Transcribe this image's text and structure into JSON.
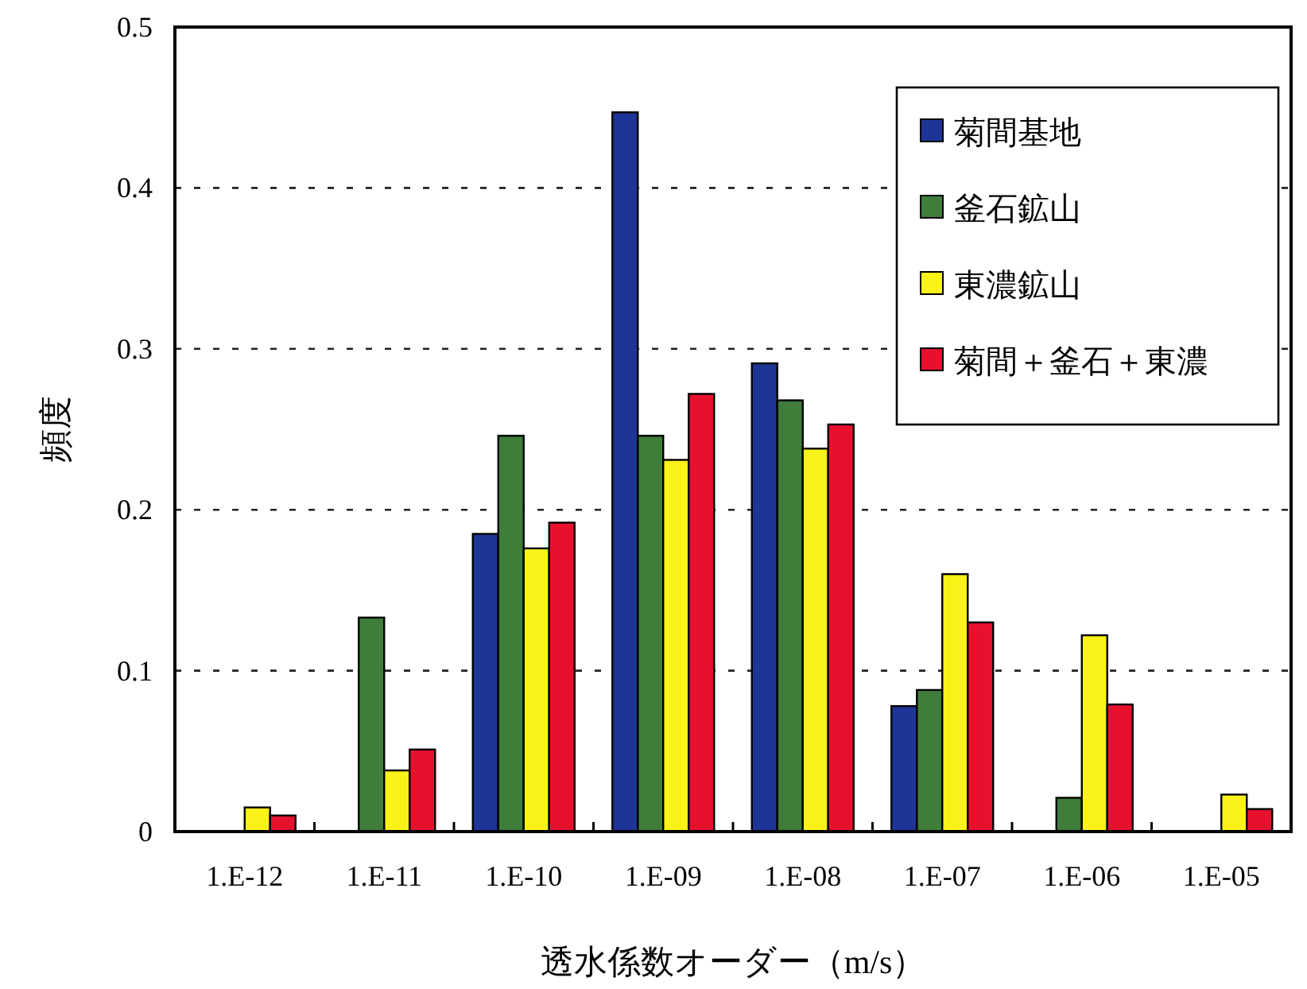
{
  "chart_data": {
    "type": "bar",
    "xlabel": "透水係数オーダー（m/s）",
    "ylabel": "頻度",
    "categories": [
      "1.E-12",
      "1.E-11",
      "1.E-10",
      "1.E-09",
      "1.E-08",
      "1.E-07",
      "1.E-06",
      "1.E-05"
    ],
    "series": [
      {
        "name": "菊間基地",
        "color": "#1c3596",
        "values": [
          0,
          0,
          0.185,
          0.447,
          0.291,
          0.078,
          0,
          0
        ]
      },
      {
        "name": "釜石鉱山",
        "color": "#3f7d3a",
        "values": [
          0,
          0.133,
          0.246,
          0.246,
          0.268,
          0.088,
          0.021,
          0
        ]
      },
      {
        "name": "東濃鉱山",
        "color": "#fbf219",
        "values": [
          0.015,
          0.038,
          0.176,
          0.231,
          0.238,
          0.16,
          0.122,
          0.023
        ]
      },
      {
        "name": "菊間＋釜石＋東濃",
        "color": "#e8112d",
        "values": [
          0.01,
          0.051,
          0.192,
          0.272,
          0.253,
          0.13,
          0.079,
          0.014
        ]
      }
    ],
    "ylim": [
      0,
      0.5
    ],
    "yticks": [
      0,
      0.1,
      0.2,
      0.3,
      0.4,
      0.5
    ],
    "grid": "y",
    "legend": "top right"
  }
}
